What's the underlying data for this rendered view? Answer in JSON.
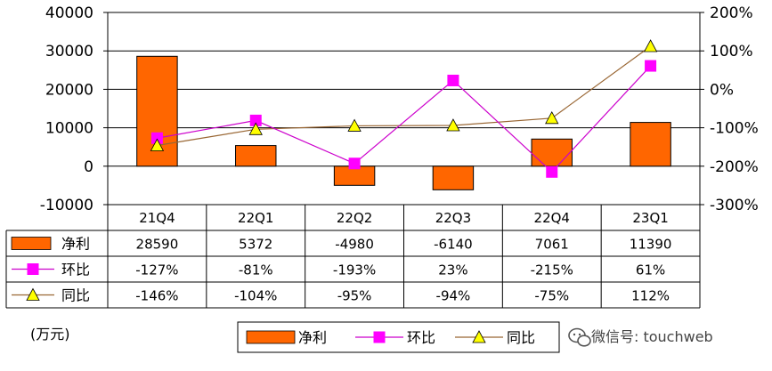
{
  "chart_data": {
    "type": "bar",
    "categories": [
      "21Q4",
      "22Q1",
      "22Q2",
      "22Q3",
      "22Q4",
      "23Q1"
    ],
    "series": [
      {
        "name": "净利",
        "type": "bar",
        "axis": "left",
        "values": [
          28590,
          5372,
          -4980,
          -6140,
          7061,
          11390
        ],
        "labels": [
          "28590",
          "5372",
          "-4980",
          "-6140",
          "7061",
          "11390"
        ]
      },
      {
        "name": "环比",
        "type": "line",
        "axis": "right",
        "marker": "square",
        "values": [
          -127,
          -81,
          -193,
          23,
          -215,
          61
        ],
        "labels": [
          "-127%",
          "-81%",
          "-193%",
          "23%",
          "-215%",
          "61%"
        ]
      },
      {
        "name": "同比",
        "type": "line",
        "axis": "right",
        "marker": "triangle",
        "values": [
          -146,
          -104,
          -95,
          -94,
          -75,
          112
        ],
        "labels": [
          "-146%",
          "-104%",
          "-95%",
          "-94%",
          "-75%",
          "112%"
        ]
      }
    ],
    "ylim_left": [
      -10000,
      40000
    ],
    "yticks_left": [
      "40000",
      "30000",
      "20000",
      "10000",
      "0",
      "-10000"
    ],
    "ylim_right": [
      -300,
      200
    ],
    "yticks_right": [
      "200%",
      "100%",
      "0%",
      "-100%",
      "-200%",
      "-300%"
    ],
    "unit_label": "(万元)",
    "legend_position": "bottom",
    "grid": "horizontal",
    "colors": {
      "bar": "#ff6600",
      "bar_edge": "#000000",
      "mom": "#cc00cc",
      "mom_marker": "#ff00ff",
      "yoy": "#996633",
      "yoy_marker": "#ffff00",
      "grid": "#000000"
    }
  },
  "watermark": "微信号: touchweb"
}
